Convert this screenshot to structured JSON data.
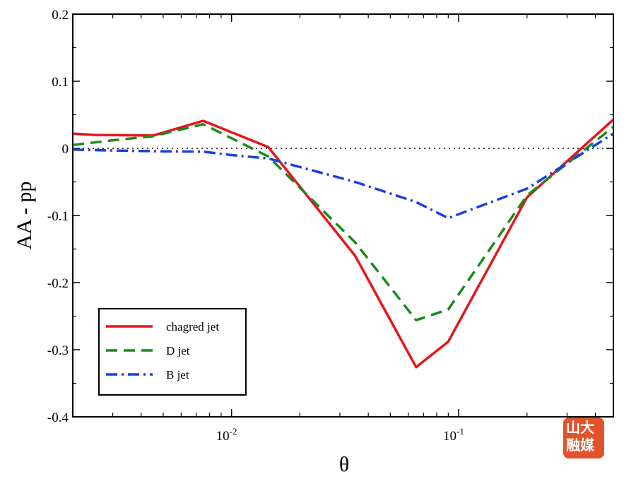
{
  "chart_data": {
    "type": "line",
    "xlabel": "θ",
    "ylabel": "AA - pp",
    "xscale": "log",
    "xlim": [
      0.002,
      0.48
    ],
    "ylim": [
      -0.4,
      0.2
    ],
    "yticks": [
      {
        "value": 0.2,
        "label": "0.2"
      },
      {
        "value": 0.1,
        "label": "0.1"
      },
      {
        "value": 0,
        "label": "0"
      },
      {
        "value": -0.1,
        "label": "-0.1"
      },
      {
        "value": -0.2,
        "label": "-0.2"
      },
      {
        "value": -0.3,
        "label": "-0.3"
      },
      {
        "value": -0.4,
        "label": "-0.4"
      }
    ],
    "xticks": [
      {
        "value": 0.01,
        "base": "10",
        "exp": "-2"
      },
      {
        "value": 0.1,
        "base": "10",
        "exp": "-1"
      }
    ],
    "reference_line": {
      "y": 0,
      "style": "dotted"
    },
    "legend_position": "bottom-left",
    "grid": false,
    "series": [
      {
        "name": "chagred jet",
        "color": "#e8141a",
        "style": "solid",
        "x": [
          0.002,
          0.0025,
          0.0045,
          0.0075,
          0.0145,
          0.035,
          0.065,
          0.09,
          0.2,
          0.48
        ],
        "y": [
          0.022,
          0.02,
          0.019,
          0.041,
          0.002,
          -0.16,
          -0.326,
          -0.288,
          -0.073,
          0.043
        ]
      },
      {
        "name": "D jet",
        "color": "#1a8a1a",
        "style": "dashed",
        "x": [
          0.002,
          0.003,
          0.0045,
          0.0075,
          0.0145,
          0.035,
          0.065,
          0.09,
          0.2,
          0.48
        ],
        "y": [
          0.005,
          0.012,
          0.018,
          0.036,
          -0.012,
          -0.14,
          -0.256,
          -0.24,
          -0.07,
          0.032
        ]
      },
      {
        "name": "B jet",
        "color": "#1a3ee8",
        "style": "dashdot",
        "x": [
          0.002,
          0.004,
          0.0075,
          0.01,
          0.0145,
          0.035,
          0.065,
          0.09,
          0.2,
          0.48
        ],
        "y": [
          -0.002,
          -0.004,
          -0.005,
          -0.01,
          -0.015,
          -0.05,
          -0.08,
          -0.104,
          -0.06,
          0.022
        ]
      }
    ]
  },
  "logo": {
    "line1": "山大",
    "line2": "融媒"
  }
}
